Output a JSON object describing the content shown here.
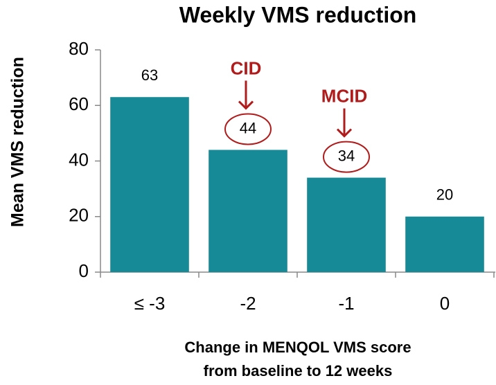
{
  "chart_data": {
    "type": "bar",
    "title": "Weekly VMS reduction",
    "ylabel": "Mean VMS reduction",
    "xlabel": [
      "Change in MENQOL VMS score",
      "from baseline to 12 weeks"
    ],
    "categories": [
      "≤ -3",
      "-2",
      "-1",
      "0"
    ],
    "values": [
      63,
      44,
      34,
      20
    ],
    "color": "#168a96",
    "ylim": [
      0,
      80
    ],
    "yticks": [
      0,
      20,
      40,
      60,
      80
    ],
    "grid": false,
    "annotations": [
      "CID",
      "MCID"
    ],
    "annotation_color": "#b01c1c"
  }
}
